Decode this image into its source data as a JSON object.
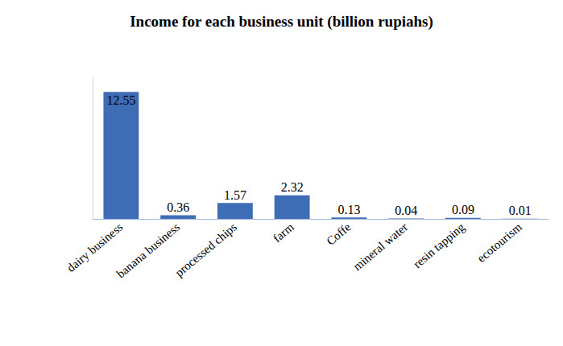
{
  "chart_data": {
    "type": "bar",
    "title": "Income for each business unit (billion rupiahs)",
    "categories": [
      "dairy business",
      "banana business",
      "processed chips",
      "farm",
      "Coffe",
      "mineral water",
      "resin tapping",
      "ecotourism"
    ],
    "values": [
      12.55,
      0.36,
      1.57,
      2.32,
      0.13,
      0.04,
      0.09,
      0.01
    ],
    "color": "#3e6db5",
    "ylim": [
      0,
      14
    ],
    "data_labels": true,
    "tick_labels": "x"
  }
}
